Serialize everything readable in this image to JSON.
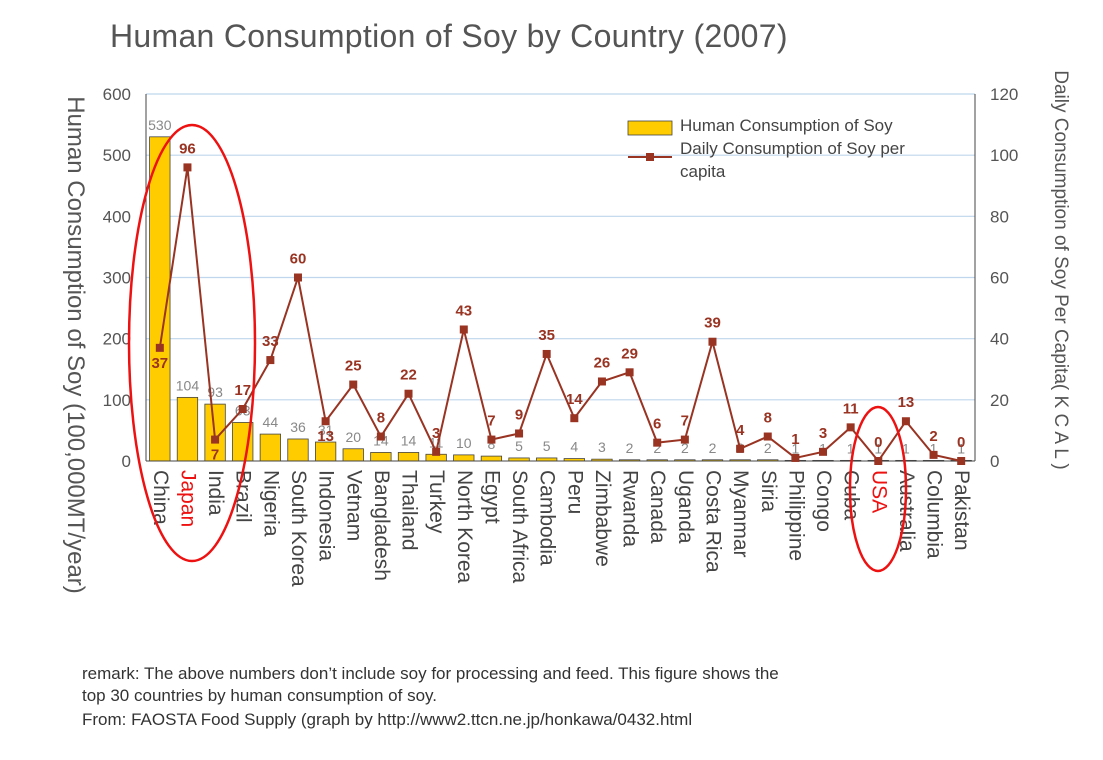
{
  "chart_data": {
    "type": "bar+line",
    "title": "Human Consumption of Soy by Country (2007)",
    "ylabel_left": "Human Consumption of Soy (100,000MT/year)",
    "ylabel_right": "Daily Consumption of Soy Per Capita( K C A L )",
    "ylim_left": [
      0,
      600
    ],
    "ylim_right": [
      0,
      120
    ],
    "yticks_left": [
      0,
      100,
      200,
      300,
      400,
      500,
      600
    ],
    "yticks_right": [
      0,
      20,
      40,
      60,
      80,
      100,
      120
    ],
    "grid": true,
    "legend_position": "top-right",
    "categories": [
      "China",
      "Japan",
      "India",
      "Brazil",
      "Nigeria",
      "South Korea",
      "Indonesia",
      "Vetnam",
      "Bangladesh",
      "Thailand",
      "Turkey",
      "North Korea",
      "Egypt",
      "South Africa",
      "Cambodia",
      "Peru",
      "Zimbabwe",
      "Rwanda",
      "Canada",
      "Uganda",
      "Costa Rica",
      "Myanmar",
      "Siria",
      "Philippine",
      "Congo",
      "Cuba",
      "USA",
      "Australia",
      "Columbia",
      "Pakistan"
    ],
    "highlighted_categories": [
      "Japan",
      "USA"
    ],
    "series": [
      {
        "name": "Human Consumption of Soy",
        "kind": "bar",
        "axis": "left",
        "color": "#FFCC00",
        "values": [
          530,
          104,
          93,
          63,
          44,
          36,
          31,
          20,
          14,
          14,
          11,
          10,
          8,
          5,
          5,
          4,
          3,
          2,
          2,
          2,
          2,
          2,
          2,
          1,
          1,
          1,
          1,
          1,
          1,
          1
        ]
      },
      {
        "name": "Daily Consumption of Soy per capita",
        "kind": "line",
        "axis": "right",
        "color": "#993322",
        "values": [
          37,
          96,
          7,
          17,
          33,
          60,
          13,
          25,
          8,
          22,
          3,
          43,
          7,
          9,
          35,
          14,
          26,
          29,
          6,
          7,
          39,
          4,
          8,
          1,
          3,
          11,
          0,
          13,
          2,
          0
        ]
      }
    ],
    "legend_labels": [
      "Human Consumption of Soy",
      "Daily Consumption of Soy per",
      "capita"
    ],
    "highlight_color": "#EE1111"
  },
  "notes": {
    "remark_line1": "remark: The above numbers don’t include soy for processing and feed. This figure shows the",
    "remark_line2": "top 30 countries by human consumption of soy.",
    "source": "From: FAOSTA Food Supply (graph by http://www2.ttcn.ne.jp/honkawa/0432.html"
  }
}
